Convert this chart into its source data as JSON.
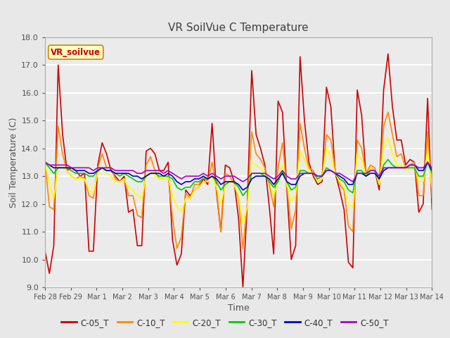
{
  "title": "VR SoilVue C Temperature",
  "ylabel": "Soil Temperature (C)",
  "xlabel": "Time",
  "ylim": [
    9.0,
    18.0
  ],
  "yticks": [
    9.0,
    10.0,
    11.0,
    12.0,
    13.0,
    14.0,
    15.0,
    16.0,
    17.0,
    18.0
  ],
  "xtick_labels": [
    "Feb 28",
    "Feb 29",
    "Mar 1",
    "Mar 2",
    "Mar 3",
    "Mar 4",
    "Mar 5",
    "Mar 6",
    "Mar 7",
    "Mar 8",
    "Mar 9",
    "Mar 10",
    "Mar 11",
    "Mar 12",
    "Mar 13",
    "Mar 14"
  ],
  "sensor_label": "VR_soilvue",
  "legend_entries": [
    "C-05_T",
    "C-10_T",
    "C-20_T",
    "C-30_T",
    "C-40_T",
    "C-50_T"
  ],
  "line_colors": [
    "#cc0000",
    "#ff8800",
    "#ffff00",
    "#00cc00",
    "#0000cc",
    "#aa00cc"
  ],
  "fig_bg_color": "#e8e8e8",
  "plot_bg_color": "#ebebeb",
  "title_color": "#404040",
  "axis_color": "#606060",
  "num_days": 14.5,
  "C05_T": [
    10.3,
    9.5,
    10.5,
    17.0,
    14.5,
    13.2,
    13.3,
    13.2,
    13.0,
    13.1,
    10.3,
    10.3,
    13.4,
    14.2,
    13.8,
    13.2,
    13.0,
    12.8,
    13.0,
    11.7,
    11.8,
    10.5,
    10.5,
    13.9,
    14.0,
    13.8,
    13.2,
    13.2,
    13.5,
    10.7,
    9.8,
    10.2,
    12.5,
    12.3,
    12.5,
    12.6,
    12.9,
    12.7,
    14.9,
    12.4,
    11.0,
    13.4,
    13.3,
    12.8,
    11.5,
    9.0,
    12.0,
    16.8,
    14.5,
    14.0,
    13.4,
    11.9,
    10.2,
    15.7,
    15.3,
    12.5,
    10.0,
    10.5,
    17.3,
    15.0,
    13.5,
    13.0,
    12.7,
    12.8,
    16.2,
    15.5,
    13.1,
    12.5,
    11.8,
    9.9,
    9.7,
    16.1,
    15.2,
    13.0,
    13.3,
    13.2,
    12.5,
    16.1,
    17.4,
    15.5,
    14.3,
    14.3,
    13.4,
    13.6,
    13.5,
    11.7,
    12.0,
    15.8,
    11.8
  ],
  "C10_T": [
    13.5,
    11.9,
    11.8,
    14.8,
    13.8,
    13.2,
    13.0,
    12.9,
    13.0,
    12.9,
    12.3,
    12.2,
    13.3,
    13.8,
    13.3,
    13.3,
    12.9,
    12.8,
    12.9,
    12.3,
    12.3,
    11.6,
    11.5,
    13.4,
    13.7,
    13.2,
    12.9,
    12.9,
    13.0,
    11.5,
    10.4,
    10.8,
    12.4,
    12.2,
    12.7,
    12.7,
    13.0,
    12.8,
    13.5,
    12.5,
    11.0,
    13.1,
    13.0,
    12.7,
    12.2,
    10.4,
    12.0,
    14.6,
    13.8,
    13.6,
    13.3,
    12.7,
    11.9,
    13.3,
    14.2,
    12.6,
    11.1,
    11.8,
    14.9,
    14.0,
    13.3,
    13.2,
    12.8,
    12.9,
    14.5,
    14.3,
    13.2,
    12.7,
    12.5,
    11.2,
    11.0,
    14.3,
    14.0,
    13.1,
    13.4,
    13.3,
    12.7,
    14.8,
    15.3,
    14.5,
    13.7,
    13.8,
    13.3,
    13.4,
    13.5,
    12.3,
    12.3,
    14.6,
    12.2
  ],
  "C20_T": [
    13.5,
    12.7,
    12.2,
    13.3,
    13.3,
    13.2,
    13.0,
    12.9,
    12.9,
    12.9,
    12.5,
    12.4,
    13.1,
    13.3,
    13.1,
    13.0,
    12.8,
    12.8,
    12.9,
    12.6,
    12.5,
    12.3,
    12.2,
    13.0,
    13.2,
    13.0,
    12.9,
    12.9,
    13.0,
    12.3,
    11.9,
    11.7,
    12.2,
    12.2,
    12.5,
    12.6,
    12.8,
    12.8,
    13.0,
    12.6,
    12.0,
    12.7,
    12.8,
    12.7,
    12.3,
    11.3,
    11.9,
    13.5,
    13.4,
    13.3,
    13.1,
    12.8,
    12.3,
    12.8,
    13.4,
    12.7,
    12.1,
    12.3,
    13.9,
    13.6,
    13.2,
    13.1,
    12.8,
    12.9,
    14.0,
    13.7,
    13.1,
    12.8,
    12.6,
    12.0,
    11.9,
    13.8,
    13.6,
    13.0,
    13.3,
    13.2,
    12.7,
    14.0,
    14.4,
    13.8,
    13.4,
    13.4,
    13.2,
    13.3,
    13.4,
    12.8,
    12.8,
    13.9,
    12.6
  ],
  "C30_T": [
    13.5,
    13.3,
    13.1,
    13.3,
    13.3,
    13.3,
    13.2,
    13.1,
    13.1,
    13.1,
    13.0,
    13.0,
    13.2,
    13.3,
    13.2,
    13.2,
    13.1,
    13.0,
    13.1,
    13.0,
    12.9,
    12.8,
    12.8,
    13.0,
    13.1,
    13.1,
    13.0,
    13.0,
    13.0,
    12.9,
    12.6,
    12.5,
    12.6,
    12.6,
    12.8,
    12.8,
    12.9,
    12.9,
    13.0,
    12.8,
    12.5,
    12.7,
    12.8,
    12.8,
    12.6,
    12.3,
    12.5,
    13.1,
    13.1,
    13.1,
    13.0,
    12.8,
    12.6,
    12.8,
    13.2,
    12.8,
    12.5,
    12.6,
    13.2,
    13.2,
    13.1,
    13.1,
    12.9,
    13.0,
    13.3,
    13.2,
    13.1,
    12.9,
    12.8,
    12.5,
    12.4,
    13.2,
    13.2,
    13.0,
    13.2,
    13.2,
    12.9,
    13.4,
    13.6,
    13.4,
    13.3,
    13.3,
    13.3,
    13.3,
    13.3,
    13.0,
    13.0,
    13.5,
    13.1
  ],
  "C40_T": [
    13.5,
    13.4,
    13.3,
    13.3,
    13.3,
    13.3,
    13.3,
    13.2,
    13.2,
    13.2,
    13.1,
    13.1,
    13.2,
    13.3,
    13.2,
    13.2,
    13.1,
    13.1,
    13.1,
    13.1,
    13.0,
    13.0,
    12.9,
    13.0,
    13.1,
    13.1,
    13.1,
    13.0,
    13.1,
    13.0,
    12.8,
    12.7,
    12.8,
    12.8,
    12.9,
    12.9,
    13.0,
    12.9,
    13.0,
    12.9,
    12.7,
    12.8,
    12.8,
    12.8,
    12.7,
    12.5,
    12.6,
    12.9,
    13.0,
    13.0,
    13.0,
    12.9,
    12.7,
    12.9,
    13.1,
    12.8,
    12.7,
    12.7,
    13.0,
    13.1,
    13.1,
    13.1,
    13.0,
    13.0,
    13.2,
    13.2,
    13.1,
    13.0,
    12.9,
    12.7,
    12.7,
    13.1,
    13.1,
    13.0,
    13.1,
    13.1,
    12.9,
    13.2,
    13.3,
    13.3,
    13.3,
    13.3,
    13.3,
    13.4,
    13.4,
    13.2,
    13.2,
    13.5,
    13.2
  ],
  "C50_T": [
    13.5,
    13.4,
    13.4,
    13.4,
    13.4,
    13.4,
    13.3,
    13.3,
    13.3,
    13.3,
    13.3,
    13.2,
    13.3,
    13.3,
    13.3,
    13.3,
    13.2,
    13.2,
    13.2,
    13.2,
    13.2,
    13.1,
    13.1,
    13.2,
    13.2,
    13.2,
    13.2,
    13.1,
    13.2,
    13.1,
    13.0,
    12.9,
    13.0,
    13.0,
    13.0,
    13.0,
    13.1,
    13.0,
    13.1,
    13.0,
    12.9,
    13.0,
    13.0,
    13.0,
    12.9,
    12.8,
    12.9,
    13.1,
    13.1,
    13.1,
    13.1,
    13.0,
    12.9,
    13.0,
    13.2,
    13.0,
    12.9,
    12.9,
    13.1,
    13.1,
    13.1,
    13.1,
    13.0,
    13.0,
    13.2,
    13.2,
    13.1,
    13.1,
    13.0,
    12.9,
    12.8,
    13.1,
    13.1,
    13.1,
    13.2,
    13.2,
    13.0,
    13.3,
    13.3,
    13.3,
    13.3,
    13.3,
    13.3,
    13.4,
    13.4,
    13.3,
    13.3,
    13.5,
    13.3
  ]
}
